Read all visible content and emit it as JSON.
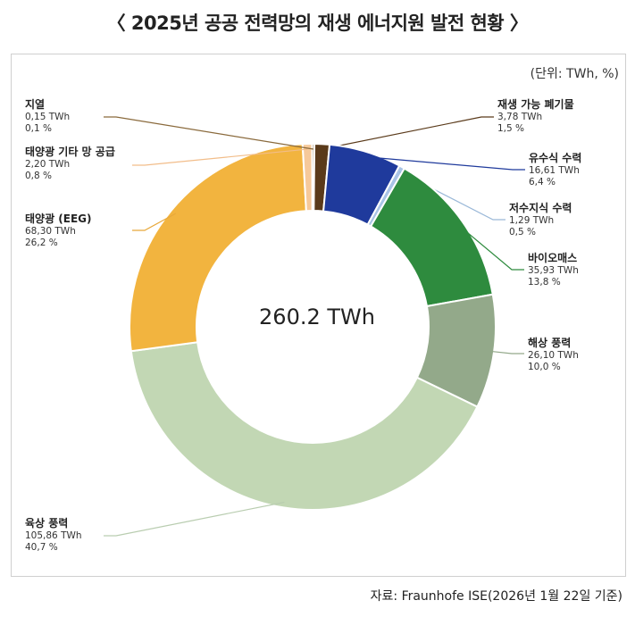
{
  "title": "〈 2025년 공공 전력망의 재생 에너지원 발전 현황 〉",
  "unit": "(단위: TWh, %)",
  "source": "자료: Fraunhofe ISE(2026년 1월 22일 기준)",
  "chart_data": {
    "type": "pie",
    "title": "〈 2025년 공공 전력망의 재생 에너지원 발전 현황 〉",
    "center_label": "260.2 TWh",
    "total": 260.2,
    "slices": [
      {
        "name": "재생 가능 폐기물",
        "value": 3.78,
        "value_text": "3,78 TWh",
        "pct_text": "1,5 %",
        "color": "#5a3a1a"
      },
      {
        "name": "유수식 수력",
        "value": 16.61,
        "value_text": "16,61 TWh",
        "pct_text": "6,4 %",
        "color": "#1f3a9c"
      },
      {
        "name": "저수지식 수력",
        "value": 1.29,
        "value_text": "1,29 TWh",
        "pct_text": "0,5 %",
        "color": "#a9c4e6"
      },
      {
        "name": "바이오매스",
        "value": 35.93,
        "value_text": "35,93 TWh",
        "pct_text": "13,8 %",
        "color": "#2e8b3e"
      },
      {
        "name": "해상 풍력",
        "value": 26.1,
        "value_text": "26,10 TWh",
        "pct_text": "10,0 %",
        "color": "#93a98a"
      },
      {
        "name": "육상 풍력",
        "value": 105.86,
        "value_text": "105,86 TWh",
        "pct_text": "40,7 %",
        "color": "#c2d7b4"
      },
      {
        "name": "태양광 (EEG)",
        "value": 68.3,
        "value_text": "68,30 TWh",
        "pct_text": "26,2 %",
        "color": "#f2b43f"
      },
      {
        "name": "태양광 기타 망 공급",
        "value": 2.2,
        "value_text": "2,20 TWh",
        "pct_text": "0,8 %",
        "color": "#f6c99a"
      },
      {
        "name": "지열",
        "value": 0.15,
        "value_text": "0,15 TWh",
        "pct_text": "0,1 %",
        "color": "#8a6a3c"
      }
    ]
  }
}
